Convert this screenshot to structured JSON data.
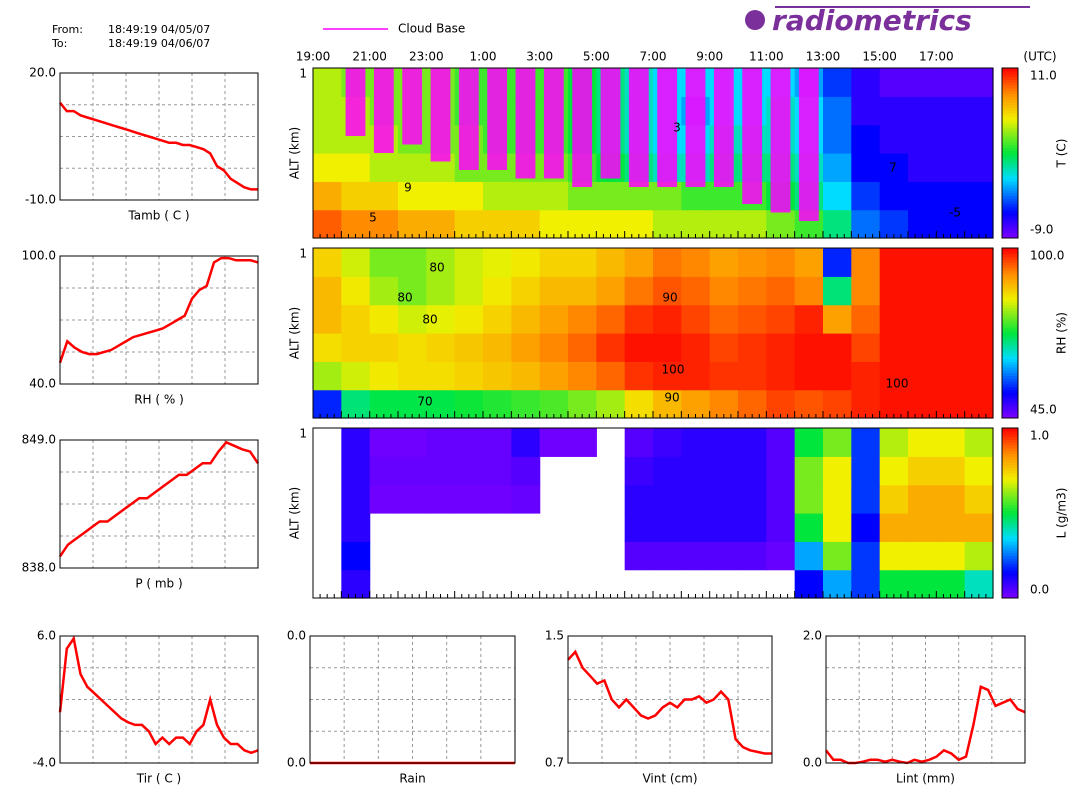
{
  "header": {
    "from_label": "From:",
    "from": "18:49:19 04/05/07",
    "to_label": "To:",
    "to": "18:49:19 04/06/07",
    "logo": "radiometrics"
  },
  "chart_data": [
    {
      "type": "heatmap",
      "ylabel": "ALT (km)",
      "ylim": [
        0,
        1
      ],
      "yticks": [
        1
      ],
      "colormap": "jet",
      "time_unit": "(UTC)",
      "categories": [
        "19:00",
        null,
        "21:00",
        null,
        "23:00",
        null,
        "1:00",
        null,
        "3:00",
        null,
        "5:00",
        null,
        "7:00",
        null,
        "9:00",
        null,
        "11:00",
        null,
        "13:00",
        null,
        "15:00",
        null,
        "17:00",
        null
      ],
      "z": [
        [
          9,
          8,
          8,
          7,
          7,
          6,
          6,
          6,
          5,
          5,
          5,
          5,
          4,
          4,
          4,
          4,
          3,
          2,
          0,
          -4,
          -5,
          -6,
          -6,
          -6
        ],
        [
          7,
          6,
          6,
          5,
          5,
          5,
          4,
          4,
          4,
          3,
          3,
          3,
          3,
          2,
          2,
          2,
          1,
          0,
          -2,
          -5,
          -6,
          -6,
          -6,
          -6
        ],
        [
          5,
          5,
          4,
          4,
          4,
          3,
          3,
          3,
          3,
          2,
          1,
          0,
          -1,
          -1,
          0,
          0,
          0,
          -1,
          -3,
          -6,
          -6,
          -7,
          -7,
          -7
        ],
        [
          4,
          4,
          4,
          3,
          3,
          3,
          2,
          2,
          2,
          1,
          0,
          -1,
          -2,
          -2,
          -1,
          -1,
          -1,
          -2,
          -4,
          -6,
          -7,
          -7,
          -7,
          -7
        ],
        [
          4,
          4,
          3,
          3,
          3,
          2,
          2,
          2,
          2,
          1,
          0,
          -1,
          -2,
          -3,
          -2,
          -2,
          -1,
          -2,
          -4,
          -7,
          -7,
          -7,
          -7,
          -7
        ],
        [
          4,
          3,
          3,
          3,
          3,
          2,
          2,
          2,
          2,
          1,
          0,
          -1,
          -2,
          -2,
          -2,
          -2,
          -2,
          -3,
          -5,
          -7,
          -8,
          -8,
          -8,
          -8
        ]
      ],
      "series": [
        {
          "name": "Cloud Base",
          "color": "#ff00ff",
          "values": [
            null,
            0.6,
            0.5,
            0.55,
            0.45,
            0.4,
            0.4,
            0.35,
            0.35,
            0.3,
            0.35,
            0.3,
            0.3,
            0.3,
            0.3,
            0.2,
            0.15,
            0.1,
            null,
            null,
            null,
            null,
            null,
            null
          ]
        }
      ],
      "annotations": [
        "9",
        "5",
        "3",
        "7",
        "-5"
      ],
      "colorbar": {
        "label": "T (C)",
        "clim": [
          -9,
          11
        ],
        "ticks": [
          {
            "value": 11,
            "label": "11.0"
          },
          {
            "value": -9,
            "label": "-9.0"
          }
        ]
      }
    },
    {
      "type": "heatmap",
      "ylabel": "ALT (km)",
      "ylim": [
        0,
        1
      ],
      "yticks": [
        1
      ],
      "colormap": "jet",
      "z": [
        [
          55,
          70,
          72,
          72,
          72,
          73,
          74,
          75,
          76,
          78,
          80,
          85,
          88,
          90,
          92,
          94,
          96,
          95,
          96,
          98,
          99,
          99,
          99,
          99
        ],
        [
          80,
          82,
          84,
          85,
          85,
          86,
          87,
          88,
          90,
          92,
          94,
          97,
          98,
          98,
          97,
          97,
          98,
          99,
          99,
          98,
          99,
          99,
          99,
          99
        ],
        [
          85,
          86,
          86,
          85,
          86,
          87,
          88,
          90,
          92,
          94,
          97,
          99,
          99,
          98,
          96,
          97,
          98,
          99,
          99,
          96,
          99,
          99,
          99,
          99
        ],
        [
          88,
          86,
          84,
          82,
          83,
          84,
          86,
          88,
          90,
          92,
          94,
          97,
          98,
          96,
          94,
          95,
          96,
          98,
          90,
          94,
          99,
          99,
          99,
          99
        ],
        [
          88,
          84,
          80,
          78,
          80,
          82,
          84,
          86,
          88,
          88,
          90,
          93,
          95,
          94,
          92,
          93,
          94,
          92,
          70,
          92,
          99,
          99,
          99,
          99
        ],
        [
          86,
          82,
          78,
          78,
          80,
          82,
          83,
          84,
          86,
          86,
          88,
          90,
          93,
          92,
          90,
          91,
          92,
          90,
          55,
          92,
          99,
          99,
          99,
          99
        ]
      ],
      "annotations": [
        "80",
        "80",
        "80",
        "90",
        "100",
        "90",
        "70",
        "100"
      ],
      "colorbar": {
        "label": "RH (%)",
        "clim": [
          45,
          100
        ],
        "ticks": [
          {
            "value": 100,
            "label": "100.0"
          },
          {
            "value": 45,
            "label": "45.0"
          }
        ]
      }
    },
    {
      "type": "heatmap",
      "ylabel": "ALT (km)",
      "ylim": [
        0,
        1
      ],
      "yticks": [
        1
      ],
      "colormap": "jet",
      "z": [
        [
          null,
          0.1,
          null,
          null,
          null,
          null,
          null,
          null,
          null,
          null,
          null,
          null,
          null,
          null,
          null,
          null,
          null,
          0.15,
          0.3,
          0.2,
          0.5,
          0.5,
          0.5,
          0.4
        ],
        [
          null,
          0.15,
          null,
          null,
          null,
          null,
          null,
          null,
          null,
          null,
          null,
          0.05,
          0.05,
          0.05,
          0.05,
          0.05,
          0.03,
          0.3,
          0.6,
          0.2,
          0.7,
          0.7,
          0.7,
          0.65
        ],
        [
          null,
          0.1,
          null,
          null,
          null,
          null,
          null,
          null,
          null,
          null,
          null,
          0.1,
          0.1,
          0.1,
          0.1,
          0.1,
          0.05,
          0.5,
          0.7,
          0.15,
          0.8,
          0.8,
          0.8,
          0.8
        ],
        [
          null,
          0.1,
          0.02,
          0.02,
          0.02,
          0.02,
          0.02,
          0.03,
          null,
          null,
          null,
          0.1,
          0.1,
          0.1,
          0.1,
          0.1,
          0.05,
          0.6,
          0.7,
          0.2,
          0.75,
          0.8,
          0.8,
          0.75
        ],
        [
          null,
          0.1,
          0.03,
          0.03,
          0.03,
          0.03,
          0.03,
          0.05,
          null,
          null,
          null,
          0.08,
          0.1,
          0.1,
          0.1,
          0.1,
          0.05,
          0.6,
          0.7,
          0.2,
          0.7,
          0.75,
          0.75,
          0.7
        ],
        [
          null,
          0.1,
          0.02,
          0.02,
          0.03,
          0.03,
          0.03,
          0.1,
          0.02,
          0.02,
          null,
          0.05,
          0.08,
          0.1,
          0.1,
          0.1,
          0.05,
          0.5,
          0.6,
          0.2,
          0.65,
          0.7,
          0.7,
          0.65
        ]
      ],
      "colorbar": {
        "label": "L (g/m3)",
        "clim": [
          0,
          1
        ],
        "ticks": [
          {
            "value": 1,
            "label": "1.0"
          },
          {
            "value": 0,
            "label": "0.0"
          }
        ]
      }
    },
    {
      "type": "line",
      "xlabel": "Tamb ( C )",
      "color": "#ff0000",
      "grid": true,
      "ylim": [
        -10,
        20
      ],
      "yticks": [
        {
          "value": 20,
          "label": "20.0"
        },
        {
          "value": -10,
          "label": "-10.0"
        }
      ],
      "values": [
        13,
        11,
        11,
        10,
        9.5,
        9,
        8.5,
        8,
        7.5,
        7,
        6.5,
        6,
        5.5,
        5,
        4.5,
        4,
        3.5,
        3.5,
        3,
        3,
        2.5,
        2,
        1,
        -2,
        -3,
        -5,
        -6,
        -7,
        -7.5,
        -7.5
      ]
    },
    {
      "type": "line",
      "xlabel": "RH ( % )",
      "color": "#ff0000",
      "grid": true,
      "ylim": [
        40,
        100
      ],
      "yticks": [
        {
          "value": 100,
          "label": "100.0"
        },
        {
          "value": 40,
          "label": "40.0"
        }
      ],
      "values": [
        50,
        60,
        57,
        55,
        54,
        54,
        55,
        56,
        58,
        60,
        62,
        63,
        64,
        65,
        66,
        68,
        70,
        72,
        80,
        84,
        86,
        97,
        99,
        99,
        98,
        98,
        98,
        97
      ]
    },
    {
      "type": "line",
      "xlabel": "P ( mb )",
      "color": "#ff0000",
      "grid": true,
      "ylim": [
        838,
        849
      ],
      "yticks": [
        {
          "value": 849,
          "label": "849.0"
        },
        {
          "value": 838,
          "label": "838.0"
        }
      ],
      "values": [
        839,
        840,
        840.5,
        841,
        841.5,
        842,
        842,
        842.5,
        843,
        843.5,
        844,
        844,
        844.5,
        845,
        845.5,
        846,
        846,
        846.5,
        847,
        847,
        848,
        848.8,
        848.5,
        848.2,
        848,
        847
      ]
    },
    {
      "type": "line",
      "xlabel": "Tir ( C )",
      "color": "#ff0000",
      "grid": true,
      "ylim": [
        -4,
        6
      ],
      "yticks": [
        {
          "value": 6,
          "label": "6.0"
        },
        {
          "value": -4,
          "label": "-4.0"
        }
      ],
      "values": [
        0,
        5,
        5.8,
        3,
        2,
        1.5,
        1,
        0.5,
        0,
        -0.5,
        -0.8,
        -1,
        -1,
        -1.5,
        -2.5,
        -2,
        -2.5,
        -2,
        -2,
        -2.5,
        -1.5,
        -1,
        1,
        -1,
        -2,
        -2.5,
        -2.5,
        -3,
        -3.2,
        -3
      ]
    },
    {
      "type": "line",
      "xlabel": "Rain",
      "color": "#ff0000",
      "grid": true,
      "ylim": [
        0,
        0.04
      ],
      "yticks": [
        {
          "value": 0.04,
          "label": "0.0"
        },
        {
          "value": 0,
          "label": "0.0"
        }
      ],
      "values": [
        0,
        0,
        0,
        0,
        0,
        0,
        0,
        0,
        0,
        0,
        0,
        0,
        0,
        0,
        0,
        0,
        0,
        0,
        0,
        0
      ]
    },
    {
      "type": "line",
      "xlabel": "Vint (cm)",
      "color": "#ff0000",
      "grid": true,
      "ylim": [
        0.7,
        1.5
      ],
      "yticks": [
        {
          "value": 1.5,
          "label": "1.5"
        },
        {
          "value": 0.7,
          "label": "0.7"
        }
      ],
      "values": [
        1.35,
        1.4,
        1.3,
        1.25,
        1.2,
        1.22,
        1.1,
        1.05,
        1.1,
        1.05,
        1.0,
        0.98,
        1.0,
        1.05,
        1.08,
        1.05,
        1.1,
        1.1,
        1.12,
        1.08,
        1.1,
        1.15,
        1.1,
        0.85,
        0.8,
        0.78,
        0.77,
        0.76,
        0.76
      ]
    },
    {
      "type": "line",
      "xlabel": "Lint (mm)",
      "color": "#ff0000",
      "grid": true,
      "ylim": [
        0,
        2
      ],
      "yticks": [
        {
          "value": 2,
          "label": "2.0"
        },
        {
          "value": 0,
          "label": "0.0"
        }
      ],
      "values": [
        0.2,
        0.05,
        0.05,
        0,
        0,
        0.02,
        0.05,
        0.05,
        0.02,
        0.05,
        0.02,
        0,
        0.05,
        0.02,
        0.05,
        0.1,
        0.2,
        0.15,
        0.05,
        0.1,
        0.6,
        1.2,
        1.15,
        0.9,
        0.95,
        1.0,
        0.85,
        0.8
      ]
    }
  ]
}
